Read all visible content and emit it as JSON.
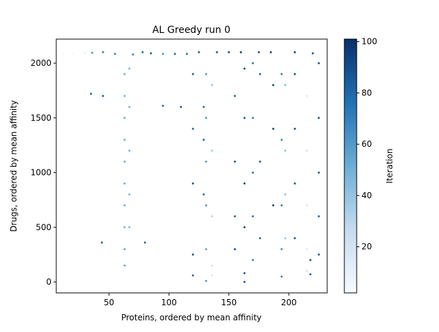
{
  "chart_data": {
    "type": "scatter",
    "title": "AL Greedy run 0",
    "x_label": "Proteins, ordered by mean affinity",
    "y_label": "Drugs, ordered by mean affinity",
    "colorbar_label": "Iteration",
    "xlim": [
      6,
      232
    ],
    "ylim": [
      -100,
      2220
    ],
    "xticks": [
      50,
      100,
      150,
      200
    ],
    "yticks": [
      0,
      500,
      1000,
      1500,
      2000
    ],
    "clim": [
      2,
      101
    ],
    "cticks": [
      20,
      40,
      60,
      80,
      100
    ],
    "colormap": [
      "#f7fbff",
      "#c6dbef",
      "#6baed6",
      "#2171b5",
      "#08306b"
    ],
    "x": [
      12,
      20,
      30,
      36,
      45,
      55,
      70,
      78,
      85,
      95,
      105,
      115,
      125,
      140,
      150,
      160,
      175,
      185,
      205,
      220,
      63,
      63,
      63,
      63,
      63,
      63,
      63,
      63,
      63,
      63,
      67,
      67,
      67,
      67,
      67,
      131,
      131,
      131,
      131,
      131,
      131,
      129,
      129,
      129,
      136,
      136,
      136,
      136,
      136,
      120,
      120,
      120,
      120,
      120,
      155,
      155,
      155,
      155,
      163,
      163,
      163,
      163,
      163,
      163,
      170,
      170,
      170,
      170,
      170,
      176,
      176,
      176,
      187,
      187,
      187,
      194,
      194,
      194,
      194,
      194,
      197,
      197,
      197,
      197,
      205,
      205,
      205,
      205,
      215,
      215,
      215,
      215,
      215,
      218,
      218,
      225,
      225,
      225,
      225,
      225,
      44,
      80,
      45,
      35,
      95,
      110
    ],
    "values": [
      2085,
      2085,
      2090,
      2095,
      2100,
      2085,
      2080,
      2100,
      2090,
      2085,
      2085,
      2085,
      2100,
      2100,
      2100,
      2100,
      2100,
      2100,
      2100,
      2090,
      1900,
      1700,
      1500,
      1300,
      1100,
      900,
      700,
      500,
      300,
      150,
      1950,
      1600,
      1200,
      800,
      500,
      1900,
      1500,
      1100,
      700,
      300,
      10,
      1600,
      1300,
      800,
      1800,
      1200,
      600,
      150,
      60,
      1900,
      1400,
      900,
      250,
      60,
      1700,
      1100,
      600,
      300,
      1950,
      1500,
      900,
      500,
      80,
      0,
      2000,
      1500,
      1000,
      600,
      200,
      1900,
      1100,
      400,
      1800,
      1400,
      700,
      1900,
      1300,
      700,
      300,
      50,
      1800,
      1200,
      800,
      400,
      1900,
      1400,
      900,
      400,
      1700,
      1200,
      700,
      300,
      100,
      200,
      70,
      2000,
      1500,
      1000,
      600,
      250,
      360,
      360,
      1700,
      1720,
      1610,
      1600
    ],
    "c": [
      5,
      5,
      10,
      60,
      70,
      70,
      70,
      80,
      85,
      60,
      80,
      75,
      85,
      85,
      90,
      95,
      90,
      95,
      95,
      90,
      50,
      50,
      52,
      50,
      52,
      50,
      52,
      50,
      55,
      55,
      45,
      48,
      48,
      48,
      45,
      60,
      60,
      58,
      60,
      55,
      60,
      80,
      82,
      80,
      40,
      35,
      30,
      25,
      20,
      85,
      80,
      85,
      88,
      80,
      80,
      85,
      80,
      88,
      88,
      85,
      90,
      92,
      85,
      85,
      75,
      72,
      75,
      75,
      70,
      82,
      85,
      80,
      95,
      92,
      95,
      70,
      68,
      70,
      65,
      68,
      45,
      40,
      40,
      38,
      90,
      88,
      85,
      85,
      15,
      20,
      18,
      15,
      20,
      85,
      80,
      85,
      85,
      85,
      80,
      85,
      80,
      80,
      85,
      80,
      80,
      85
    ]
  }
}
